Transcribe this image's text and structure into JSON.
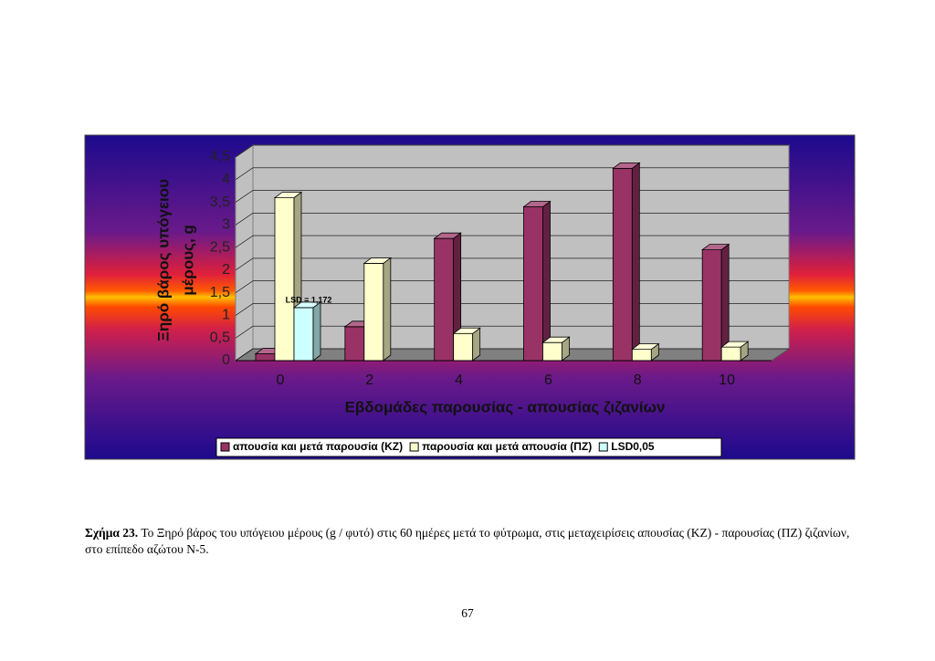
{
  "chart_data": {
    "type": "bar3d",
    "ylabel": [
      "Ξηρό βάρος υπόγειου",
      "μέρους, g"
    ],
    "xlabel": "Εβδομάδες παρουσίας - απουσίας ζιζανίων",
    "categories": [
      "0",
      "2",
      "4",
      "6",
      "8",
      "10"
    ],
    "series": [
      {
        "name": "απουσία και μετά παρουσία (ΚΖ)",
        "color": "#993366",
        "values": [
          0.15,
          0.75,
          2.7,
          3.4,
          4.25,
          2.45
        ]
      },
      {
        "name": "παρουσία και μετά απουσία (ΠΖ)",
        "color": "#ffffcc",
        "values": [
          3.6,
          2.15,
          0.6,
          0.4,
          0.25,
          0.3
        ]
      },
      {
        "name": "LSD0,05",
        "color": "#ccffff",
        "values": [
          1.172,
          null,
          null,
          null,
          null,
          null
        ]
      }
    ],
    "annotation": "LSD = 1,172",
    "ylim": [
      0,
      4.5
    ],
    "yticks": [
      0,
      {
        "value": 0.5,
        "label": "0,5"
      },
      1,
      {
        "value": 1.5,
        "label": "1,5"
      },
      2,
      {
        "value": 2.5,
        "label": "2,5"
      },
      3,
      {
        "value": 3.5,
        "label": "3,5"
      },
      4,
      {
        "value": 4.5,
        "label": "4,5"
      }
    ],
    "grid": true,
    "legend": "bottom"
  },
  "caption": {
    "label": "Σχήμα 23.",
    "text": "Το Ξηρό βάρος του υπόγειου μέρους (g / φυτό) στις 60 ημέρες μετά το φύτρωμα, στις μεταχειρίσεις απουσίας (ΚΖ) - παρουσίας (ΠΖ) ζιζανίων, στο επίπεδο αζώτου Ν-5."
  },
  "page_number": "67"
}
